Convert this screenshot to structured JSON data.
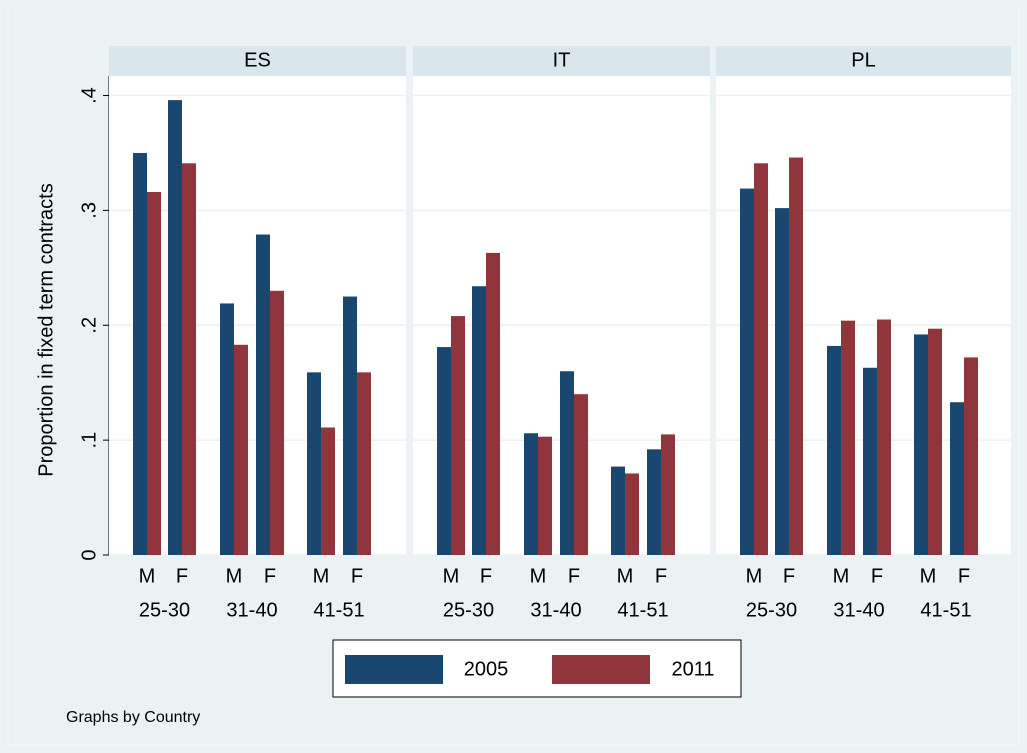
{
  "y_axis": {
    "label": "Proportion in fixed term contracts",
    "ylim": [
      0,
      0.417
    ],
    "yticks": [
      0,
      {
        "value": 0.1,
        "label": ".1"
      },
      {
        "value": 0.2,
        "label": ".2"
      },
      {
        "value": 0.3,
        "label": ".3"
      },
      {
        "value": 0.4,
        "label": ".4"
      }
    ],
    "grid": true
  },
  "legend": [
    {
      "name": "2005",
      "color": "#1a476f"
    },
    {
      "name": "2011",
      "color": "#90353b"
    }
  ],
  "note": "Graphs by Country",
  "chart_data": [
    {
      "type": "bar",
      "title": "ES",
      "categories": [
        "M",
        "F",
        "M",
        "F",
        "M",
        "F"
      ],
      "groups": [
        "25-30",
        "31-40",
        "41-51"
      ],
      "series": [
        {
          "values": [
            0.35,
            0.396,
            0.219,
            0.279,
            0.159,
            0.225
          ]
        },
        {
          "values": [
            0.316,
            0.341,
            0.183,
            0.23,
            0.111,
            0.159
          ]
        }
      ]
    },
    {
      "type": "bar",
      "title": "IT",
      "categories": [
        "M",
        "F",
        "M",
        "F",
        "M",
        "F"
      ],
      "groups": [
        "25-30",
        "31-40",
        "41-51"
      ],
      "series": [
        {
          "values": [
            0.181,
            0.234,
            0.106,
            0.16,
            0.077,
            0.092
          ]
        },
        {
          "values": [
            0.208,
            0.263,
            0.103,
            0.14,
            0.071,
            0.105
          ]
        }
      ]
    },
    {
      "type": "bar",
      "title": "PL",
      "categories": [
        "M",
        "F",
        "M",
        "F",
        "M",
        "F"
      ],
      "groups": [
        "25-30",
        "31-40",
        "41-51"
      ],
      "series": [
        {
          "values": [
            0.319,
            0.302,
            0.182,
            0.163,
            0.192,
            0.133
          ]
        },
        {
          "values": [
            0.341,
            0.346,
            0.204,
            0.205,
            0.197,
            0.172
          ]
        }
      ]
    }
  ]
}
